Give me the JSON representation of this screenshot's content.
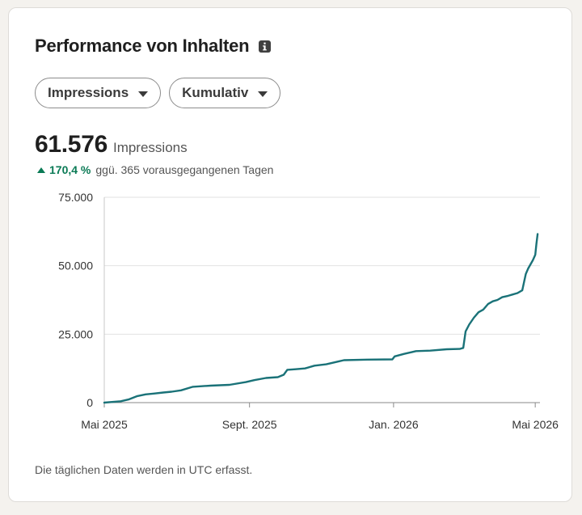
{
  "header": {
    "title": "Performance von Inhalten",
    "info_icon": "info-icon"
  },
  "filters": {
    "metric_label": "Impressions",
    "mode_label": "Kumulativ"
  },
  "summary": {
    "value": "61.576",
    "unit": "Impressions",
    "change_pct": "170,4 %",
    "change_text": "ggü. 365 vorausgegangenen Tagen",
    "change_color": "#0a7a55"
  },
  "footnote": "Die täglichen Daten werden in UTC erfasst.",
  "chart_data": {
    "type": "line",
    "title": "",
    "xlabel": "",
    "ylabel": "",
    "x_ticks": [
      "Mai 2025",
      "Sept. 2025",
      "Jan. 2026",
      "Mai 2026"
    ],
    "y_ticks": [
      "0",
      "25.000",
      "50.000",
      "75.000"
    ],
    "ylim": [
      0,
      75000
    ],
    "xlim": [
      "2025-05-01",
      "2026-05-05"
    ],
    "grid": true,
    "line_color": "#1a7278",
    "series": [
      {
        "x": [
          "2025-05-01",
          "2025-05-15",
          "2025-05-22",
          "2025-05-29",
          "2025-06-05",
          "2025-06-12",
          "2025-06-20",
          "2025-06-27",
          "2025-07-05",
          "2025-07-15",
          "2025-07-30",
          "2025-08-15",
          "2025-08-29",
          "2025-09-05",
          "2025-09-15",
          "2025-09-25",
          "2025-09-30",
          "2025-10-03",
          "2025-10-10",
          "2025-10-18",
          "2025-10-26",
          "2025-11-05",
          "2025-11-15",
          "2025-11-20",
          "2025-12-10",
          "2025-12-31",
          "2026-01-02",
          "2026-01-10",
          "2026-01-20",
          "2026-02-01",
          "2026-02-15",
          "2026-02-26",
          "2026-03-01",
          "2026-03-03",
          "2026-03-06",
          "2026-03-10",
          "2026-03-14",
          "2026-03-18",
          "2026-03-22",
          "2026-03-26",
          "2026-03-30",
          "2026-04-03",
          "2026-04-08",
          "2026-04-12",
          "2026-04-16",
          "2026-04-20",
          "2026-04-23",
          "2026-04-25",
          "2026-04-27",
          "2026-04-29",
          "2026-05-01",
          "2026-05-02",
          "2026-05-03"
        ],
        "y": [
          0,
          500,
          1200,
          2400,
          3000,
          3300,
          3700,
          4000,
          4500,
          5800,
          6200,
          6500,
          7500,
          8200,
          9000,
          9300,
          10200,
          12000,
          12200,
          12500,
          13500,
          14000,
          15000,
          15500,
          15700,
          15800,
          16900,
          17800,
          18800,
          19000,
          19500,
          19600,
          20000,
          26000,
          28500,
          31000,
          33000,
          34000,
          36000,
          37000,
          37500,
          38500,
          39000,
          39500,
          40000,
          41000,
          47000,
          49000,
          50500,
          52000,
          54000,
          58000,
          61576
        ]
      }
    ]
  }
}
